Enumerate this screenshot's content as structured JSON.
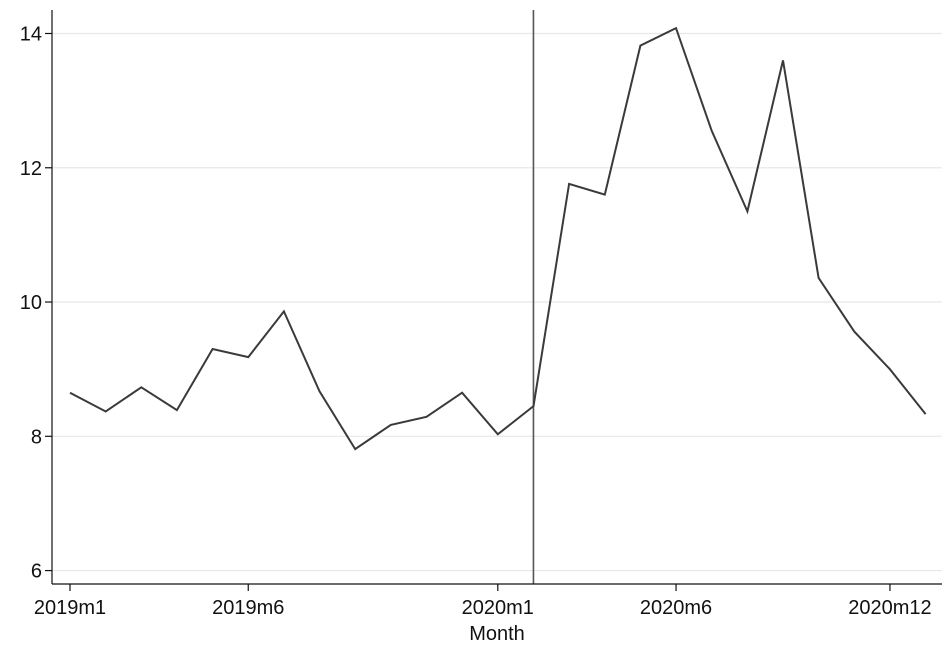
{
  "chart_data": {
    "type": "line",
    "xlabel": "Month",
    "ylabel": "",
    "x": [
      "2019m1",
      "2019m2",
      "2019m3",
      "2019m4",
      "2019m5",
      "2019m6",
      "2019m7",
      "2019m8",
      "2019m9",
      "2019m10",
      "2019m11",
      "2019m12",
      "2020m1",
      "2020m2",
      "2020m3",
      "2020m4",
      "2020m5",
      "2020m6",
      "2020m7",
      "2020m8",
      "2020m9",
      "2020m10",
      "2020m11",
      "2020m12",
      "2021m1"
    ],
    "series": [
      {
        "values": [
          8.65,
          8.37,
          8.73,
          8.39,
          9.3,
          9.18,
          9.86,
          8.67,
          7.81,
          8.17,
          8.29,
          8.65,
          8.03,
          8.45,
          11.76,
          11.6,
          13.82,
          14.08,
          12.55,
          11.35,
          13.6,
          10.36,
          9.56,
          9.0,
          8.33
        ]
      }
    ],
    "xticks": [
      "2019m1",
      "2019m6",
      "2020m1",
      "2020m6",
      "2020m12"
    ],
    "yticks": [
      "6",
      "8",
      "10",
      "12",
      "14"
    ],
    "ylim": [
      5.8,
      14.35
    ],
    "reference_line_x": "2020m2",
    "grid": true,
    "colors": {
      "line": "#3a3a3a",
      "grid": "#e8e8e8",
      "axis": "#111111",
      "refline": "#555555"
    }
  }
}
